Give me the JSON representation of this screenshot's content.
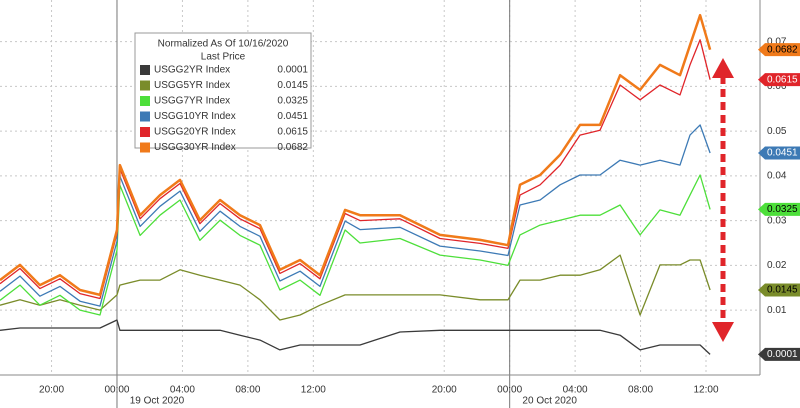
{
  "chart_data": {
    "type": "line",
    "legend_title": "Normalized As Of 10/16/2020",
    "legend_subtitle": "Last Price",
    "date_labels": [
      "19 Oct 2020",
      "20 Oct 2020"
    ],
    "x": [
      -7.15,
      -5.93,
      -4.71,
      -3.48,
      -2.26,
      -1.04,
      0,
      0.18,
      1.41,
      2.63,
      3.85,
      5.07,
      6.3,
      7.52,
      8.74,
      9.96,
      11.19,
      12.41,
      13.94,
      14.85,
      17.3,
      19.74,
      22.19,
      23.9,
      24.63,
      25.86,
      27.08,
      28.3,
      29.52,
      30.75,
      31.97,
      33.19,
      34.41,
      35.02,
      35.64,
      36.25
    ],
    "xlim": [
      -7.15,
      39.3
    ],
    "xticks": [
      {
        "value": -4,
        "label": "20:00"
      },
      {
        "value": 0,
        "label": "00:00"
      },
      {
        "value": 4,
        "label": "04:00"
      },
      {
        "value": 8,
        "label": "08:00"
      },
      {
        "value": 12,
        "label": "12:00"
      },
      {
        "value": 20,
        "label": "20:00"
      },
      {
        "value": 24,
        "label": "00:00"
      },
      {
        "value": 28,
        "label": "04:00"
      },
      {
        "value": 32,
        "label": "08:00"
      },
      {
        "value": 36,
        "label": "12:00"
      }
    ],
    "ylim": [
      -0.0045,
      0.0793
    ],
    "yticks": [
      0.01,
      0.02,
      0.03,
      0.04,
      0.05,
      0.06,
      0.07
    ],
    "grid": true,
    "series": [
      {
        "name": "USGG2YR Index",
        "color": "#3a3a3a",
        "values": [
          0.0055,
          0.006,
          0.006,
          0.006,
          0.006,
          0.006,
          0.0078,
          0.0055,
          0.0055,
          0.0055,
          0.0055,
          0.0055,
          0.0055,
          0.0044,
          0.0033,
          0.0011,
          0.0022,
          0.0022,
          0.0022,
          0.0022,
          0.0051,
          0.0055,
          0.0055,
          0.0055,
          0.0055,
          0.0055,
          0.0055,
          0.0055,
          0.0055,
          0.0044,
          0.0011,
          0.0022,
          0.0022,
          0.0022,
          0.0022,
          0.0001
        ]
      },
      {
        "name": "USGG5YR Index",
        "color": "#7a8c2a",
        "values": [
          0.0111,
          0.0123,
          0.0111,
          0.0123,
          0.0111,
          0.01,
          0.0134,
          0.0156,
          0.0167,
          0.0167,
          0.019,
          0.0178,
          0.0167,
          0.0156,
          0.0123,
          0.0078,
          0.0089,
          0.0111,
          0.0134,
          0.0134,
          0.0134,
          0.0134,
          0.0123,
          0.0123,
          0.0167,
          0.0167,
          0.0178,
          0.0178,
          0.019,
          0.0223,
          0.0089,
          0.0201,
          0.0201,
          0.0212,
          0.0212,
          0.0145
        ]
      },
      {
        "name": "USGG7YR Index",
        "color": "#4ddf3a",
        "values": [
          0.0122,
          0.0156,
          0.0111,
          0.0133,
          0.01,
          0.0089,
          0.0234,
          0.0379,
          0.0267,
          0.0312,
          0.0346,
          0.0256,
          0.0301,
          0.0267,
          0.0245,
          0.0145,
          0.0167,
          0.0133,
          0.0279,
          0.025,
          0.026,
          0.0223,
          0.0212,
          0.02,
          0.0268,
          0.029,
          0.0301,
          0.0312,
          0.0312,
          0.0335,
          0.0268,
          0.0324,
          0.0312,
          0.0357,
          0.0402,
          0.0325
        ]
      },
      {
        "name": "USGG10YR Index",
        "color": "#3d7ab5",
        "values": [
          0.0142,
          0.0176,
          0.0131,
          0.0153,
          0.012,
          0.0109,
          0.0254,
          0.0399,
          0.0287,
          0.0332,
          0.0366,
          0.0276,
          0.0321,
          0.0287,
          0.0265,
          0.0165,
          0.0187,
          0.0153,
          0.0299,
          0.028,
          0.0285,
          0.0243,
          0.0232,
          0.0222,
          0.0335,
          0.0346,
          0.038,
          0.0402,
          0.0402,
          0.0435,
          0.0424,
          0.0435,
          0.0424,
          0.0491,
          0.0514,
          0.0451
        ]
      },
      {
        "name": "USGG20YR Index",
        "color": "#e0252a",
        "values": [
          0.0159,
          0.0193,
          0.0148,
          0.017,
          0.0137,
          0.0126,
          0.0271,
          0.0416,
          0.0304,
          0.0349,
          0.0383,
          0.0293,
          0.0338,
          0.0304,
          0.0282,
          0.0182,
          0.0204,
          0.017,
          0.0316,
          0.03,
          0.0304,
          0.026,
          0.0249,
          0.0238,
          0.0357,
          0.038,
          0.0424,
          0.0491,
          0.0502,
          0.0603,
          0.057,
          0.0603,
          0.0581,
          0.0648,
          0.0704,
          0.0615
        ]
      },
      {
        "name": "USGG30YR Index",
        "color": "#f07a1a",
        "values": [
          0.0167,
          0.0201,
          0.0156,
          0.0178,
          0.0145,
          0.0134,
          0.0279,
          0.0424,
          0.0312,
          0.0357,
          0.0391,
          0.0301,
          0.0346,
          0.0312,
          0.029,
          0.019,
          0.0212,
          0.0178,
          0.0324,
          0.0312,
          0.0312,
          0.0268,
          0.0257,
          0.0245,
          0.038,
          0.0402,
          0.0447,
          0.0514,
          0.0514,
          0.0625,
          0.0592,
          0.0648,
          0.0625,
          0.0692,
          0.0759,
          0.0682
        ]
      }
    ]
  }
}
